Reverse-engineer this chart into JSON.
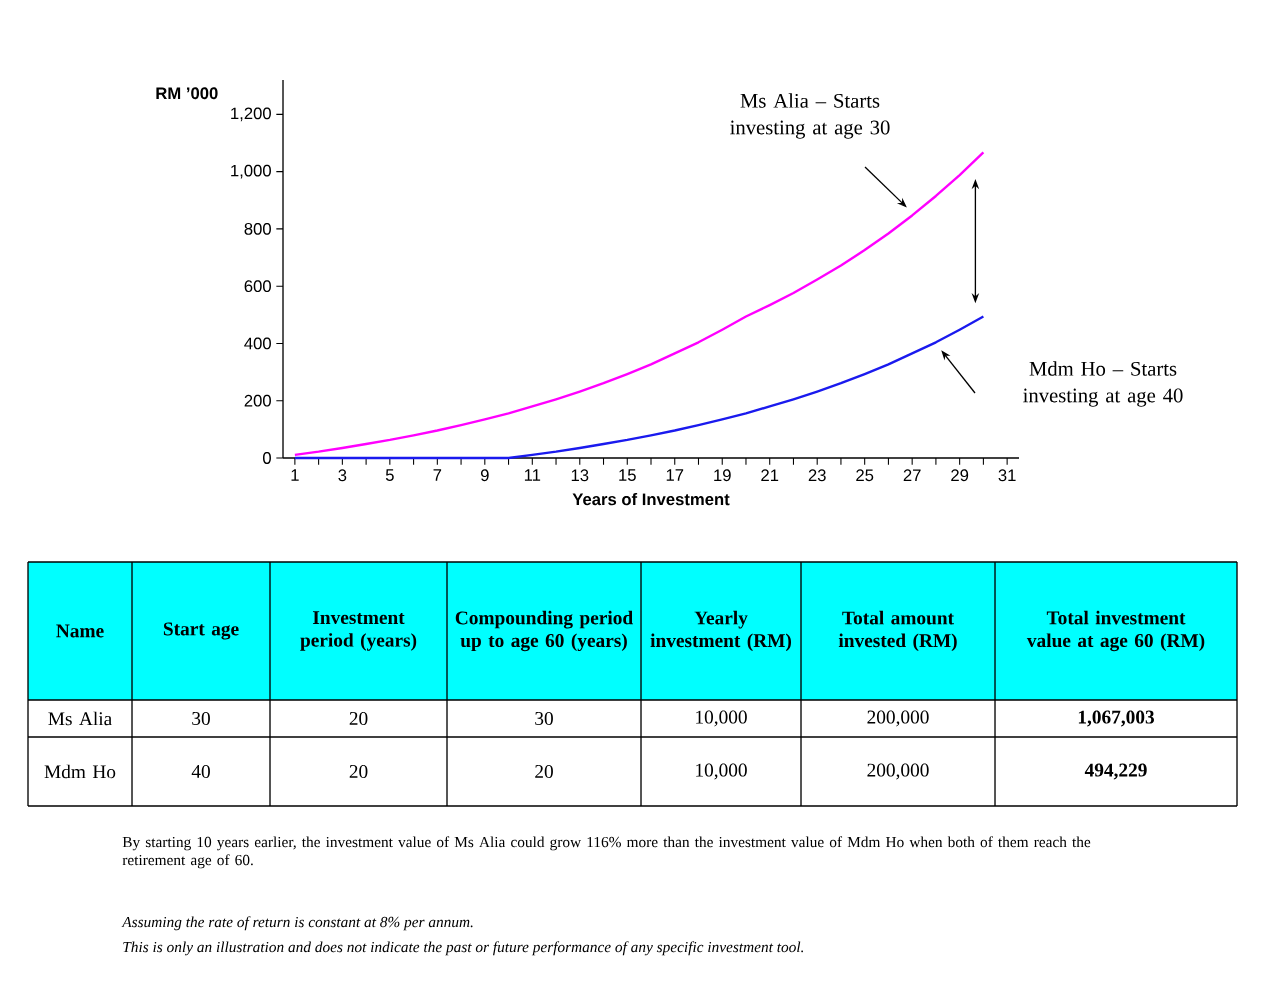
{
  "chart_data": {
    "type": "line",
    "xlabel": "Years of Investment",
    "ylabel": "RM ’000",
    "x": [
      1,
      2,
      3,
      4,
      5,
      6,
      7,
      8,
      9,
      10,
      11,
      12,
      13,
      14,
      15,
      16,
      17,
      18,
      19,
      20,
      21,
      22,
      23,
      24,
      25,
      26,
      27,
      28,
      29,
      30
    ],
    "series": [
      {
        "color": "#ff00ff",
        "values": [
          11,
          22,
          35,
          49,
          63,
          79,
          96,
          115,
          135,
          156,
          180,
          205,
          232,
          261,
          293,
          327,
          365,
          404,
          448,
          494,
          534,
          576,
          623,
          672,
          726,
          784,
          847,
          915,
          988,
          1067
        ]
      },
      {
        "color": "#1a1aee",
        "values": [
          0,
          0,
          0,
          0,
          0,
          0,
          0,
          0,
          0,
          0,
          11,
          22,
          35,
          49,
          63,
          79,
          96,
          115,
          135,
          156,
          180,
          205,
          232,
          261,
          293,
          327,
          365,
          404,
          448,
          494
        ]
      }
    ],
    "xlim": [
      0.5,
      31.5
    ],
    "ylim": [
      0,
      1320
    ],
    "xticks": [
      1,
      {
        "value": 2,
        "label": null
      },
      3,
      {
        "value": 4,
        "label": null
      },
      5,
      {
        "value": 6,
        "label": null
      },
      7,
      {
        "value": 8,
        "label": null
      },
      9,
      {
        "value": 10,
        "label": null
      },
      11,
      {
        "value": 12,
        "label": null
      },
      13,
      {
        "value": 14,
        "label": null
      },
      15,
      {
        "value": 16,
        "label": null
      },
      17,
      {
        "value": 18,
        "label": null
      },
      19,
      {
        "value": 20,
        "label": null
      },
      21,
      {
        "value": 22,
        "label": null
      },
      23,
      {
        "value": 24,
        "label": null
      },
      25,
      {
        "value": 26,
        "label": null
      },
      27,
      {
        "value": 28,
        "label": null
      },
      29,
      {
        "value": 30,
        "label": null
      },
      31
    ],
    "yticks": [
      0,
      200,
      400,
      600,
      800,
      {
        "value": 1000,
        "label": "1,000"
      },
      {
        "value": 1200,
        "label": "1,200"
      }
    ],
    "annotations": [
      "Ms Alia – Starts investing at age 30",
      "Mdm Ho – Starts investing at age 40",
      "Name",
      "Start age",
      "Investment period (years)",
      "Compounding period up to age 60 (years)",
      "Yearly investment (RM)",
      "Total amount invested (RM)",
      "Total investment value at age 60 (RM)",
      "Ms Alia",
      "30",
      "20",
      "30",
      "10,000",
      "200,000",
      "1,067,003",
      "Mdm Ho",
      "40",
      "20",
      "20",
      "10,000",
      "200,000",
      "494,229",
      "By starting 10 years earlier, the investment value of Ms Alia could grow 116% more than the investment value of Mdm Ho when both of them reach the retirement age of 60.",
      "Assuming the rate of return is constant at 8% per annum.",
      "This is only an illustration and does not indicate the past or future performance of any specific investment tool."
    ]
  }
}
